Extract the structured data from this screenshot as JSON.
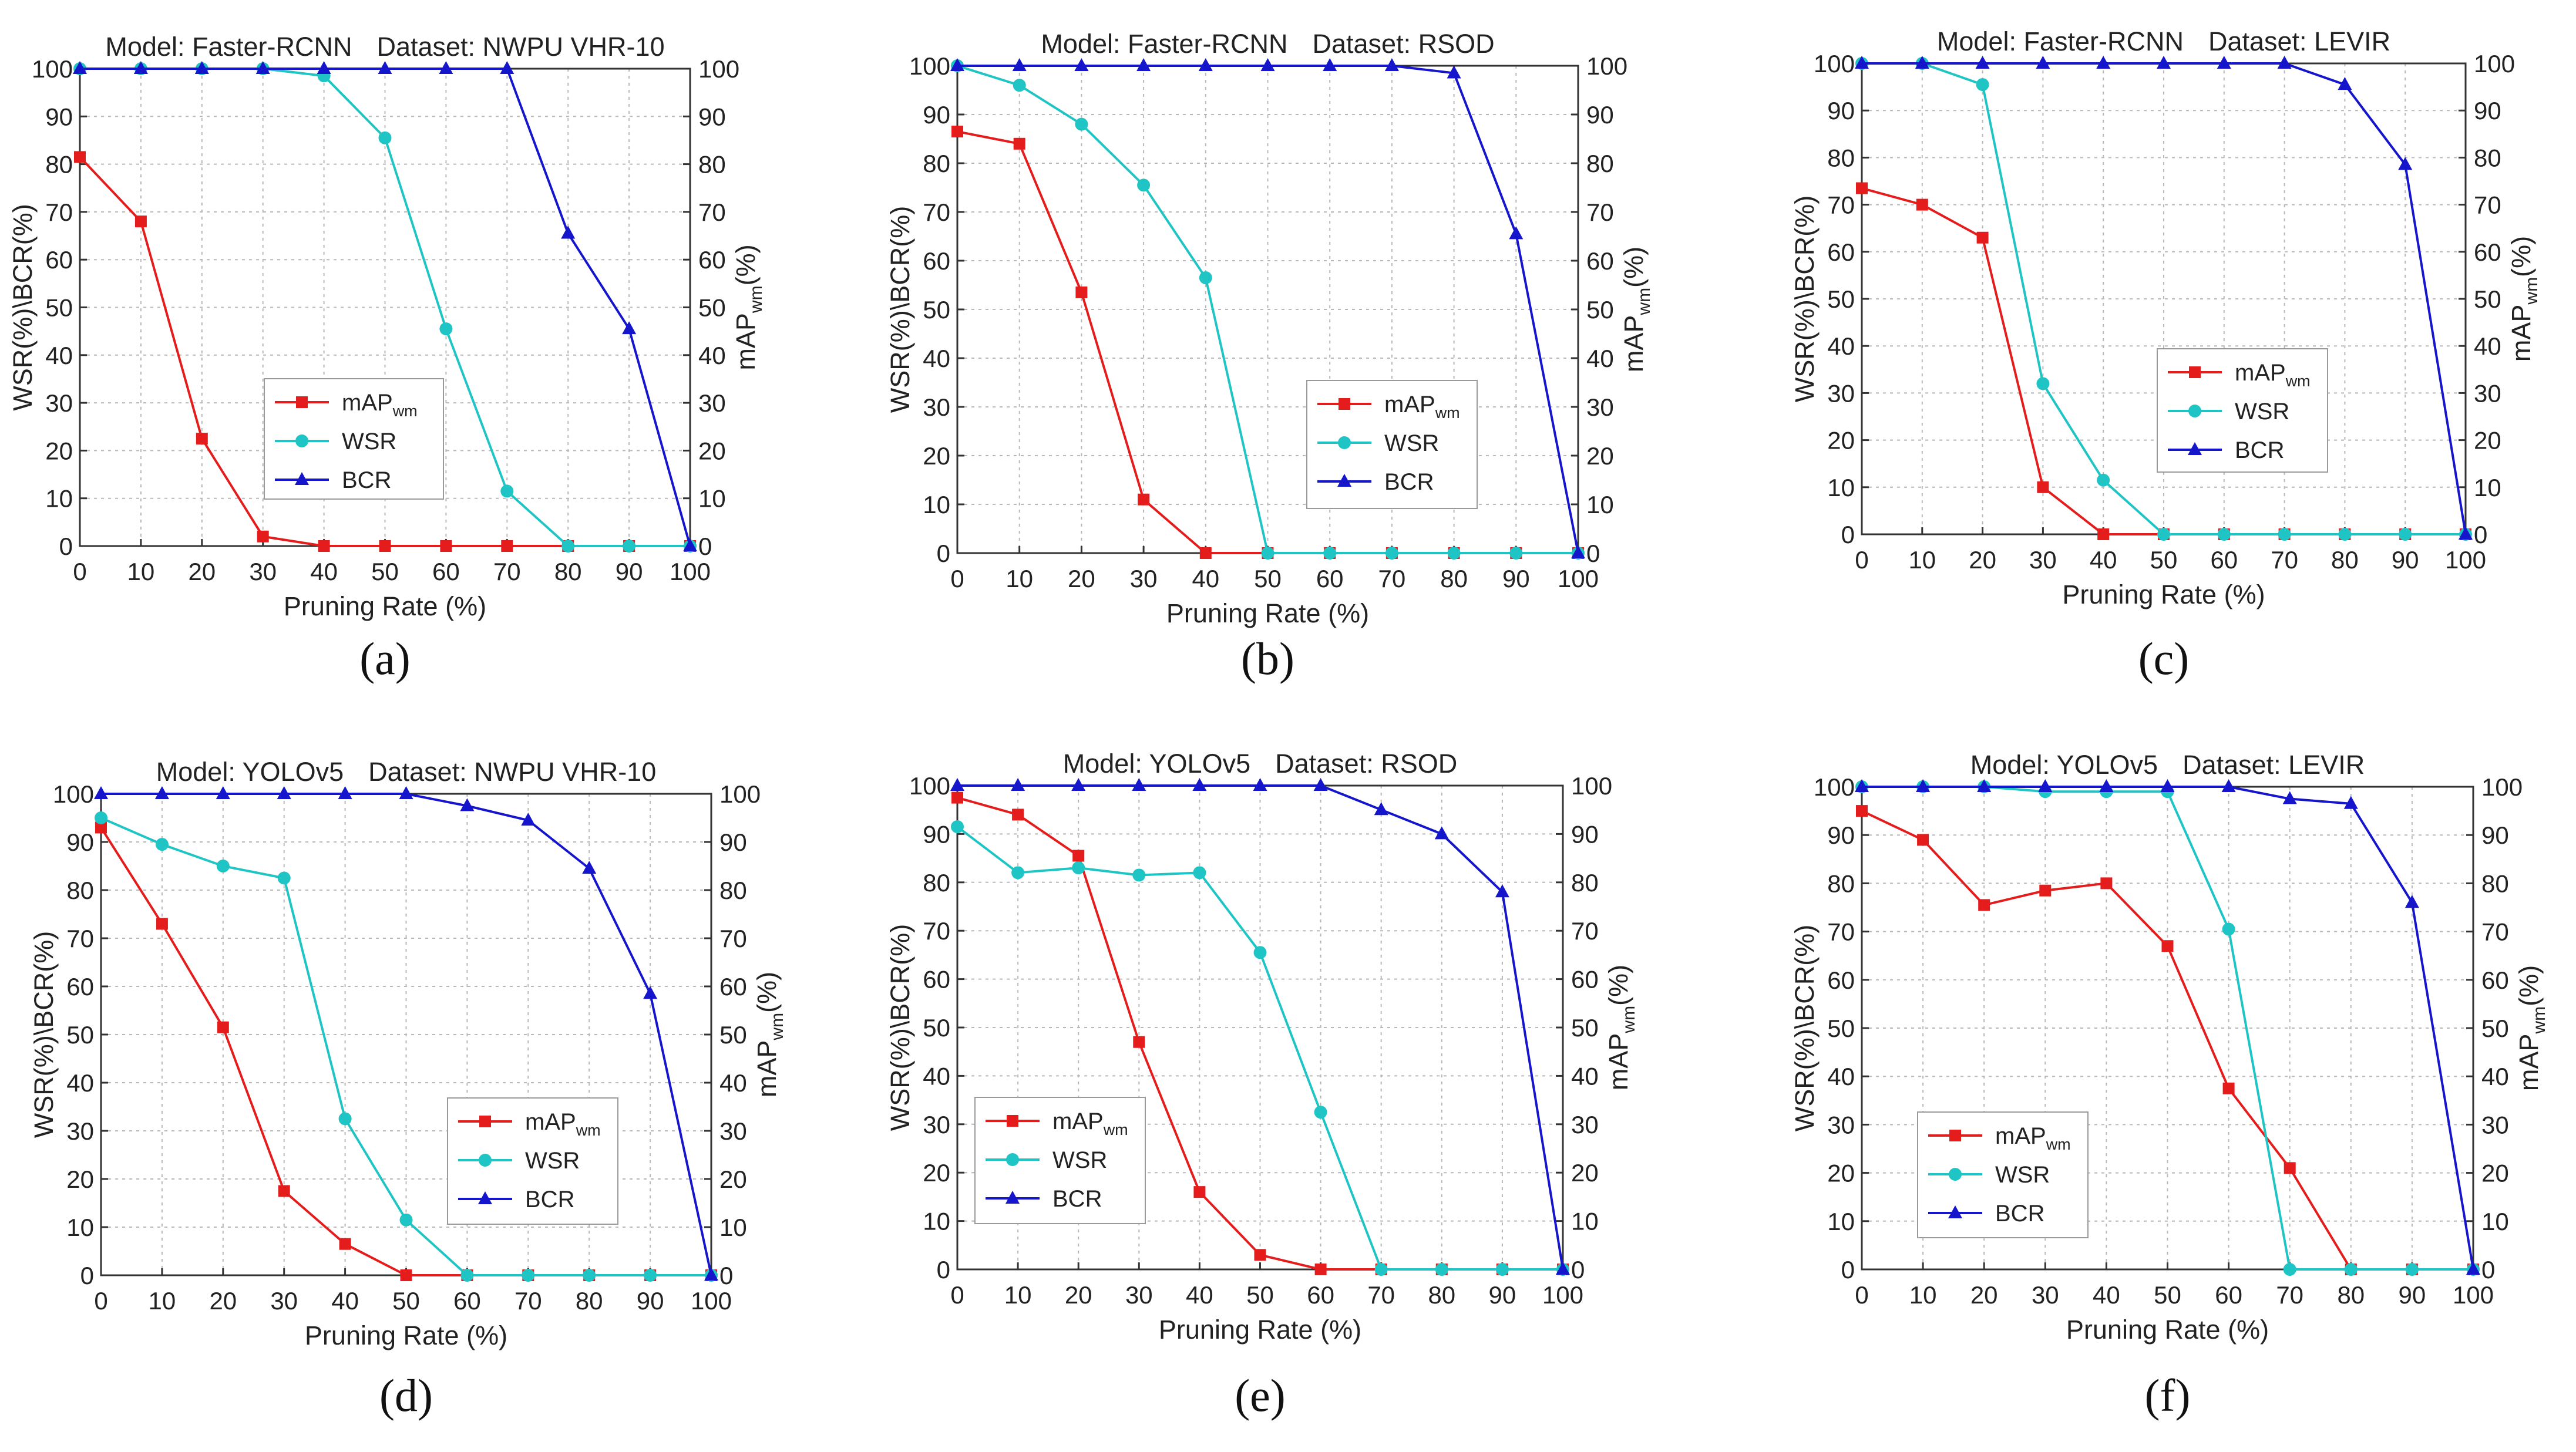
{
  "figure": {
    "series_colors": {
      "mAP_wm": "#e51c1c",
      "WSR": "#1fc4c4",
      "BCR": "#1515cc"
    }
  },
  "chart_data": [
    {
      "panel": "(a)",
      "type": "line",
      "title_model_label": "Model: Faster-RCNN",
      "title_dataset_label": "Dataset: NWPU VHR-10",
      "xlabel": "Pruning Rate (%)",
      "ylabel_left": "WSR(%)\\BCR(%)",
      "ylabel_right_main": "mAP",
      "ylabel_right_sub": "wm",
      "ylabel_right_tail": "(%)",
      "x": [
        0,
        10,
        20,
        30,
        40,
        50,
        60,
        70,
        80,
        90,
        100
      ],
      "xlim": [
        0,
        100
      ],
      "ylim": [
        0,
        100
      ],
      "x_ticks": [
        "0",
        "10",
        "20",
        "30",
        "40",
        "50",
        "60",
        "70",
        "80",
        "90",
        "100"
      ],
      "y_ticks": [
        "0",
        "10",
        "20",
        "30",
        "40",
        "50",
        "60",
        "70",
        "80",
        "90",
        "100"
      ],
      "grid": true,
      "legend_position": "center-left",
      "series": [
        {
          "name": "mAP",
          "name_sub": "wm",
          "key": "mAP_wm",
          "marker": "square",
          "values": [
            81.5,
            68,
            22.5,
            2,
            0,
            0,
            0,
            0,
            0,
            0,
            0
          ]
        },
        {
          "name": "WSR",
          "name_sub": "",
          "key": "WSR",
          "marker": "circle",
          "values": [
            100,
            100,
            100,
            100,
            98.5,
            85.5,
            45.5,
            11.5,
            0,
            0,
            0
          ]
        },
        {
          "name": "BCR",
          "name_sub": "",
          "key": "BCR",
          "marker": "triangle",
          "values": [
            100,
            100,
            100,
            100,
            100,
            100,
            100,
            100,
            65.5,
            45.5,
            0
          ]
        }
      ]
    },
    {
      "panel": "(b)",
      "type": "line",
      "title_model_label": "Model: Faster-RCNN",
      "title_dataset_label": "Dataset: RSOD",
      "xlabel": "Pruning Rate (%)",
      "ylabel_left": "WSR(%)\\BCR(%)",
      "ylabel_right_main": "mAP",
      "ylabel_right_sub": "wm",
      "ylabel_right_tail": "(%)",
      "x": [
        0,
        10,
        20,
        30,
        40,
        50,
        60,
        70,
        80,
        90,
        100
      ],
      "xlim": [
        0,
        100
      ],
      "ylim": [
        0,
        100
      ],
      "x_ticks": [
        "0",
        "10",
        "20",
        "30",
        "40",
        "50",
        "60",
        "70",
        "80",
        "90",
        "100"
      ],
      "y_ticks": [
        "0",
        "10",
        "20",
        "30",
        "40",
        "50",
        "60",
        "70",
        "80",
        "90",
        "100"
      ],
      "grid": true,
      "legend_position": "center-right",
      "series": [
        {
          "name": "mAP",
          "name_sub": "wm",
          "key": "mAP_wm",
          "marker": "square",
          "values": [
            86.5,
            84,
            53.5,
            11,
            0,
            0,
            0,
            0,
            0,
            0,
            0
          ]
        },
        {
          "name": "WSR",
          "name_sub": "",
          "key": "WSR",
          "marker": "circle",
          "values": [
            100,
            96,
            88,
            75.5,
            56.5,
            0,
            0,
            0,
            0,
            0,
            0
          ]
        },
        {
          "name": "BCR",
          "name_sub": "",
          "key": "BCR",
          "marker": "triangle",
          "values": [
            100,
            100,
            100,
            100,
            100,
            100,
            100,
            100,
            98.5,
            65.5,
            0
          ]
        }
      ]
    },
    {
      "panel": "(c)",
      "type": "line",
      "title_model_label": "Model: Faster-RCNN",
      "title_dataset_label": "Dataset: LEVIR",
      "xlabel": "Pruning Rate (%)",
      "ylabel_left": "WSR(%)\\BCR(%)",
      "ylabel_right_main": "mAP",
      "ylabel_right_sub": "wm",
      "ylabel_right_tail": "(%)",
      "x": [
        0,
        10,
        20,
        30,
        40,
        50,
        60,
        70,
        80,
        90,
        100
      ],
      "xlim": [
        0,
        100
      ],
      "ylim": [
        0,
        100
      ],
      "x_ticks": [
        "0",
        "10",
        "20",
        "30",
        "40",
        "50",
        "60",
        "70",
        "80",
        "90",
        "100"
      ],
      "y_ticks": [
        "0",
        "10",
        "20",
        "30",
        "40",
        "50",
        "60",
        "70",
        "80",
        "90",
        "100"
      ],
      "grid": true,
      "legend_position": "center",
      "series": [
        {
          "name": "mAP",
          "name_sub": "wm",
          "key": "mAP_wm",
          "marker": "square",
          "values": [
            73.5,
            70,
            63,
            10,
            0,
            0,
            0,
            0,
            0,
            0,
            0
          ]
        },
        {
          "name": "WSR",
          "name_sub": "",
          "key": "WSR",
          "marker": "circle",
          "values": [
            100,
            100,
            95.5,
            32,
            11.5,
            0,
            0,
            0,
            0,
            0,
            0
          ]
        },
        {
          "name": "BCR",
          "name_sub": "",
          "key": "BCR",
          "marker": "triangle",
          "values": [
            100,
            100,
            100,
            100,
            100,
            100,
            100,
            100,
            95.5,
            78.5,
            0
          ]
        }
      ]
    },
    {
      "panel": "(d)",
      "type": "line",
      "title_model_label": "Model: YOLOv5",
      "title_dataset_label": "Dataset: NWPU VHR-10",
      "xlabel": "Pruning Rate (%)",
      "ylabel_left": "WSR(%)\\BCR(%)",
      "ylabel_right_main": "mAP",
      "ylabel_right_sub": "wm",
      "ylabel_right_tail": "(%)",
      "x": [
        0,
        10,
        20,
        30,
        40,
        50,
        60,
        70,
        80,
        90,
        100
      ],
      "xlim": [
        0,
        100
      ],
      "ylim": [
        0,
        100
      ],
      "x_ticks": [
        "0",
        "10",
        "20",
        "30",
        "40",
        "50",
        "60",
        "70",
        "80",
        "90",
        "100"
      ],
      "y_ticks": [
        "0",
        "10",
        "20",
        "30",
        "40",
        "50",
        "60",
        "70",
        "80",
        "90",
        "100"
      ],
      "grid": true,
      "legend_position": "lower-right",
      "series": [
        {
          "name": "mAP",
          "name_sub": "wm",
          "key": "mAP_wm",
          "marker": "square",
          "values": [
            93,
            73,
            51.5,
            17.5,
            6.5,
            0,
            0,
            0,
            0,
            0,
            0
          ]
        },
        {
          "name": "WSR",
          "name_sub": "",
          "key": "WSR",
          "marker": "circle",
          "values": [
            95,
            89.5,
            85,
            82.5,
            32.5,
            11.5,
            0,
            0,
            0,
            0,
            0
          ]
        },
        {
          "name": "BCR",
          "name_sub": "",
          "key": "BCR",
          "marker": "triangle",
          "values": [
            100,
            100,
            100,
            100,
            100,
            100,
            97.5,
            94.5,
            84.5,
            58.5,
            0
          ]
        }
      ]
    },
    {
      "panel": "(e)",
      "type": "line",
      "title_model_label": "Model: YOLOv5",
      "title_dataset_label": "Dataset: RSOD",
      "xlabel": "Pruning Rate (%)",
      "ylabel_left": "WSR(%)\\BCR(%)",
      "ylabel_right_main": "mAP",
      "ylabel_right_sub": "wm",
      "ylabel_right_tail": "(%)",
      "x": [
        0,
        10,
        20,
        30,
        40,
        50,
        60,
        70,
        80,
        90,
        100
      ],
      "xlim": [
        0,
        100
      ],
      "ylim": [
        0,
        100
      ],
      "x_ticks": [
        "0",
        "10",
        "20",
        "30",
        "40",
        "50",
        "60",
        "70",
        "80",
        "90",
        "100"
      ],
      "y_ticks": [
        "0",
        "10",
        "20",
        "30",
        "40",
        "50",
        "60",
        "70",
        "80",
        "90",
        "100"
      ],
      "grid": true,
      "legend_position": "lower-left",
      "series": [
        {
          "name": "mAP",
          "name_sub": "wm",
          "key": "mAP_wm",
          "marker": "square",
          "values": [
            97.5,
            94,
            85.5,
            47,
            16,
            3,
            0,
            0,
            0,
            0,
            0
          ]
        },
        {
          "name": "WSR",
          "name_sub": "",
          "key": "WSR",
          "marker": "circle",
          "values": [
            91.5,
            82,
            83,
            81.5,
            82,
            65.5,
            32.5,
            0,
            0,
            0,
            0
          ]
        },
        {
          "name": "BCR",
          "name_sub": "",
          "key": "BCR",
          "marker": "triangle",
          "values": [
            100,
            100,
            100,
            100,
            100,
            100,
            100,
            95,
            90,
            78,
            0
          ]
        }
      ]
    },
    {
      "panel": "(f)",
      "type": "line",
      "title_model_label": "Model: YOLOv5",
      "title_dataset_label": "Dataset: LEVIR",
      "xlabel": "Pruning Rate (%)",
      "ylabel_left": "WSR(%)\\BCR(%)",
      "ylabel_right_main": "mAP",
      "ylabel_right_sub": "wm",
      "ylabel_right_tail": "(%)",
      "x": [
        0,
        10,
        20,
        30,
        40,
        50,
        60,
        70,
        80,
        90,
        100
      ],
      "xlim": [
        0,
        100
      ],
      "ylim": [
        0,
        100
      ],
      "x_ticks": [
        "0",
        "10",
        "20",
        "30",
        "40",
        "50",
        "60",
        "70",
        "80",
        "90",
        "100"
      ],
      "y_ticks": [
        "0",
        "10",
        "20",
        "30",
        "40",
        "50",
        "60",
        "70",
        "80",
        "90",
        "100"
      ],
      "grid": true,
      "legend_position": "lower-left",
      "series": [
        {
          "name": "mAP",
          "name_sub": "wm",
          "key": "mAP_wm",
          "marker": "square",
          "values": [
            95,
            89,
            75.5,
            78.5,
            80,
            67,
            37.5,
            21,
            0,
            0,
            0
          ]
        },
        {
          "name": "WSR",
          "name_sub": "",
          "key": "WSR",
          "marker": "circle",
          "values": [
            100,
            100,
            100,
            99,
            99,
            99,
            70.5,
            0,
            0,
            0,
            0
          ]
        },
        {
          "name": "BCR",
          "name_sub": "",
          "key": "BCR",
          "marker": "triangle",
          "values": [
            100,
            100,
            100,
            100,
            100,
            100,
            100,
            97.5,
            96.5,
            76,
            0
          ]
        }
      ]
    }
  ]
}
